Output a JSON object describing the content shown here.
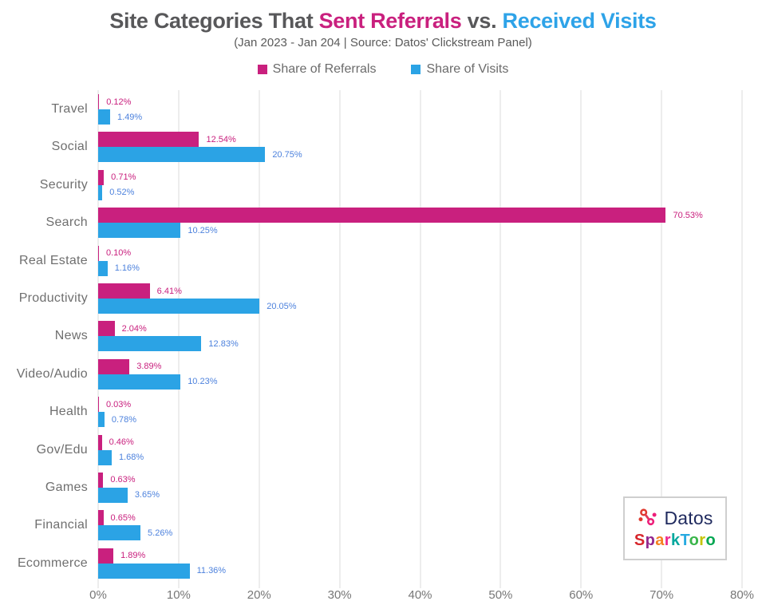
{
  "title": {
    "part1": "Site Categories That ",
    "referrals": "Sent Referrals",
    "part2": " vs. ",
    "visits": "Received Visits"
  },
  "subtitle": "(Jan 2023 - Jan 204 | Source: Datos' Clickstream Panel)",
  "legend": [
    {
      "label": "Share of Referrals",
      "color": "#C9207E"
    },
    {
      "label": "Share of Visits",
      "color": "#2BA3E5"
    }
  ],
  "chart_data": {
    "type": "bar",
    "orientation": "horizontal",
    "title": "Site Categories That Sent Referrals vs. Received Visits",
    "xlabel": "",
    "ylabel": "",
    "xlim": [
      0,
      80
    ],
    "grid": "vertical",
    "legend_position": "top",
    "x_ticks": [
      "0%",
      "10%",
      "20%",
      "30%",
      "40%",
      "50%",
      "60%",
      "70%",
      "80%"
    ],
    "categories": [
      "Travel",
      "Social",
      "Security",
      "Search",
      "Real Estate",
      "Productivity",
      "News",
      "Video/Audio",
      "Health",
      "Gov/Edu",
      "Games",
      "Financial",
      "Ecommerce"
    ],
    "series": [
      {
        "name": "Share of Referrals",
        "color": "#C9207E",
        "label_color": "#C9207E",
        "values": [
          0.12,
          12.54,
          0.71,
          70.53,
          0.1,
          6.41,
          2.04,
          3.89,
          0.03,
          0.46,
          0.63,
          0.65,
          1.89
        ],
        "labels": [
          "0.12%",
          "12.54%",
          "0.71%",
          "70.53%",
          "0.10%",
          "6.41%",
          "2.04%",
          "3.89%",
          "0.03%",
          "0.46%",
          "0.63%",
          "0.65%",
          "1.89%"
        ]
      },
      {
        "name": "Share of Visits",
        "color": "#2BA3E5",
        "label_color": "#4D82DD",
        "values": [
          1.49,
          20.75,
          0.52,
          10.25,
          1.16,
          20.05,
          12.83,
          10.23,
          0.78,
          1.68,
          3.65,
          5.26,
          11.36
        ],
        "labels": [
          "1.49%",
          "20.75%",
          "0.52%",
          "10.25%",
          "1.16%",
          "20.05%",
          "12.83%",
          "10.23%",
          "0.78%",
          "1.68%",
          "3.65%",
          "5.26%",
          "11.36%"
        ]
      }
    ]
  },
  "logo": {
    "datos": "Datos",
    "sparktoro_letters": [
      {
        "ch": "S",
        "color": "#D7262C"
      },
      {
        "ch": "p",
        "color": "#92278F"
      },
      {
        "ch": "a",
        "color": "#F58220"
      },
      {
        "ch": "r",
        "color": "#EC268F"
      },
      {
        "ch": "k",
        "color": "#00A79D"
      },
      {
        "ch": "T",
        "color": "#27AAE1"
      },
      {
        "ch": "o",
        "color": "#39B54A"
      },
      {
        "ch": "r",
        "color": "#C4C400"
      },
      {
        "ch": "o",
        "color": "#00A651"
      }
    ],
    "icon_colors": {
      "left": "#E03A2F",
      "mid": "#E23A55",
      "right": "#ED1E79"
    }
  }
}
